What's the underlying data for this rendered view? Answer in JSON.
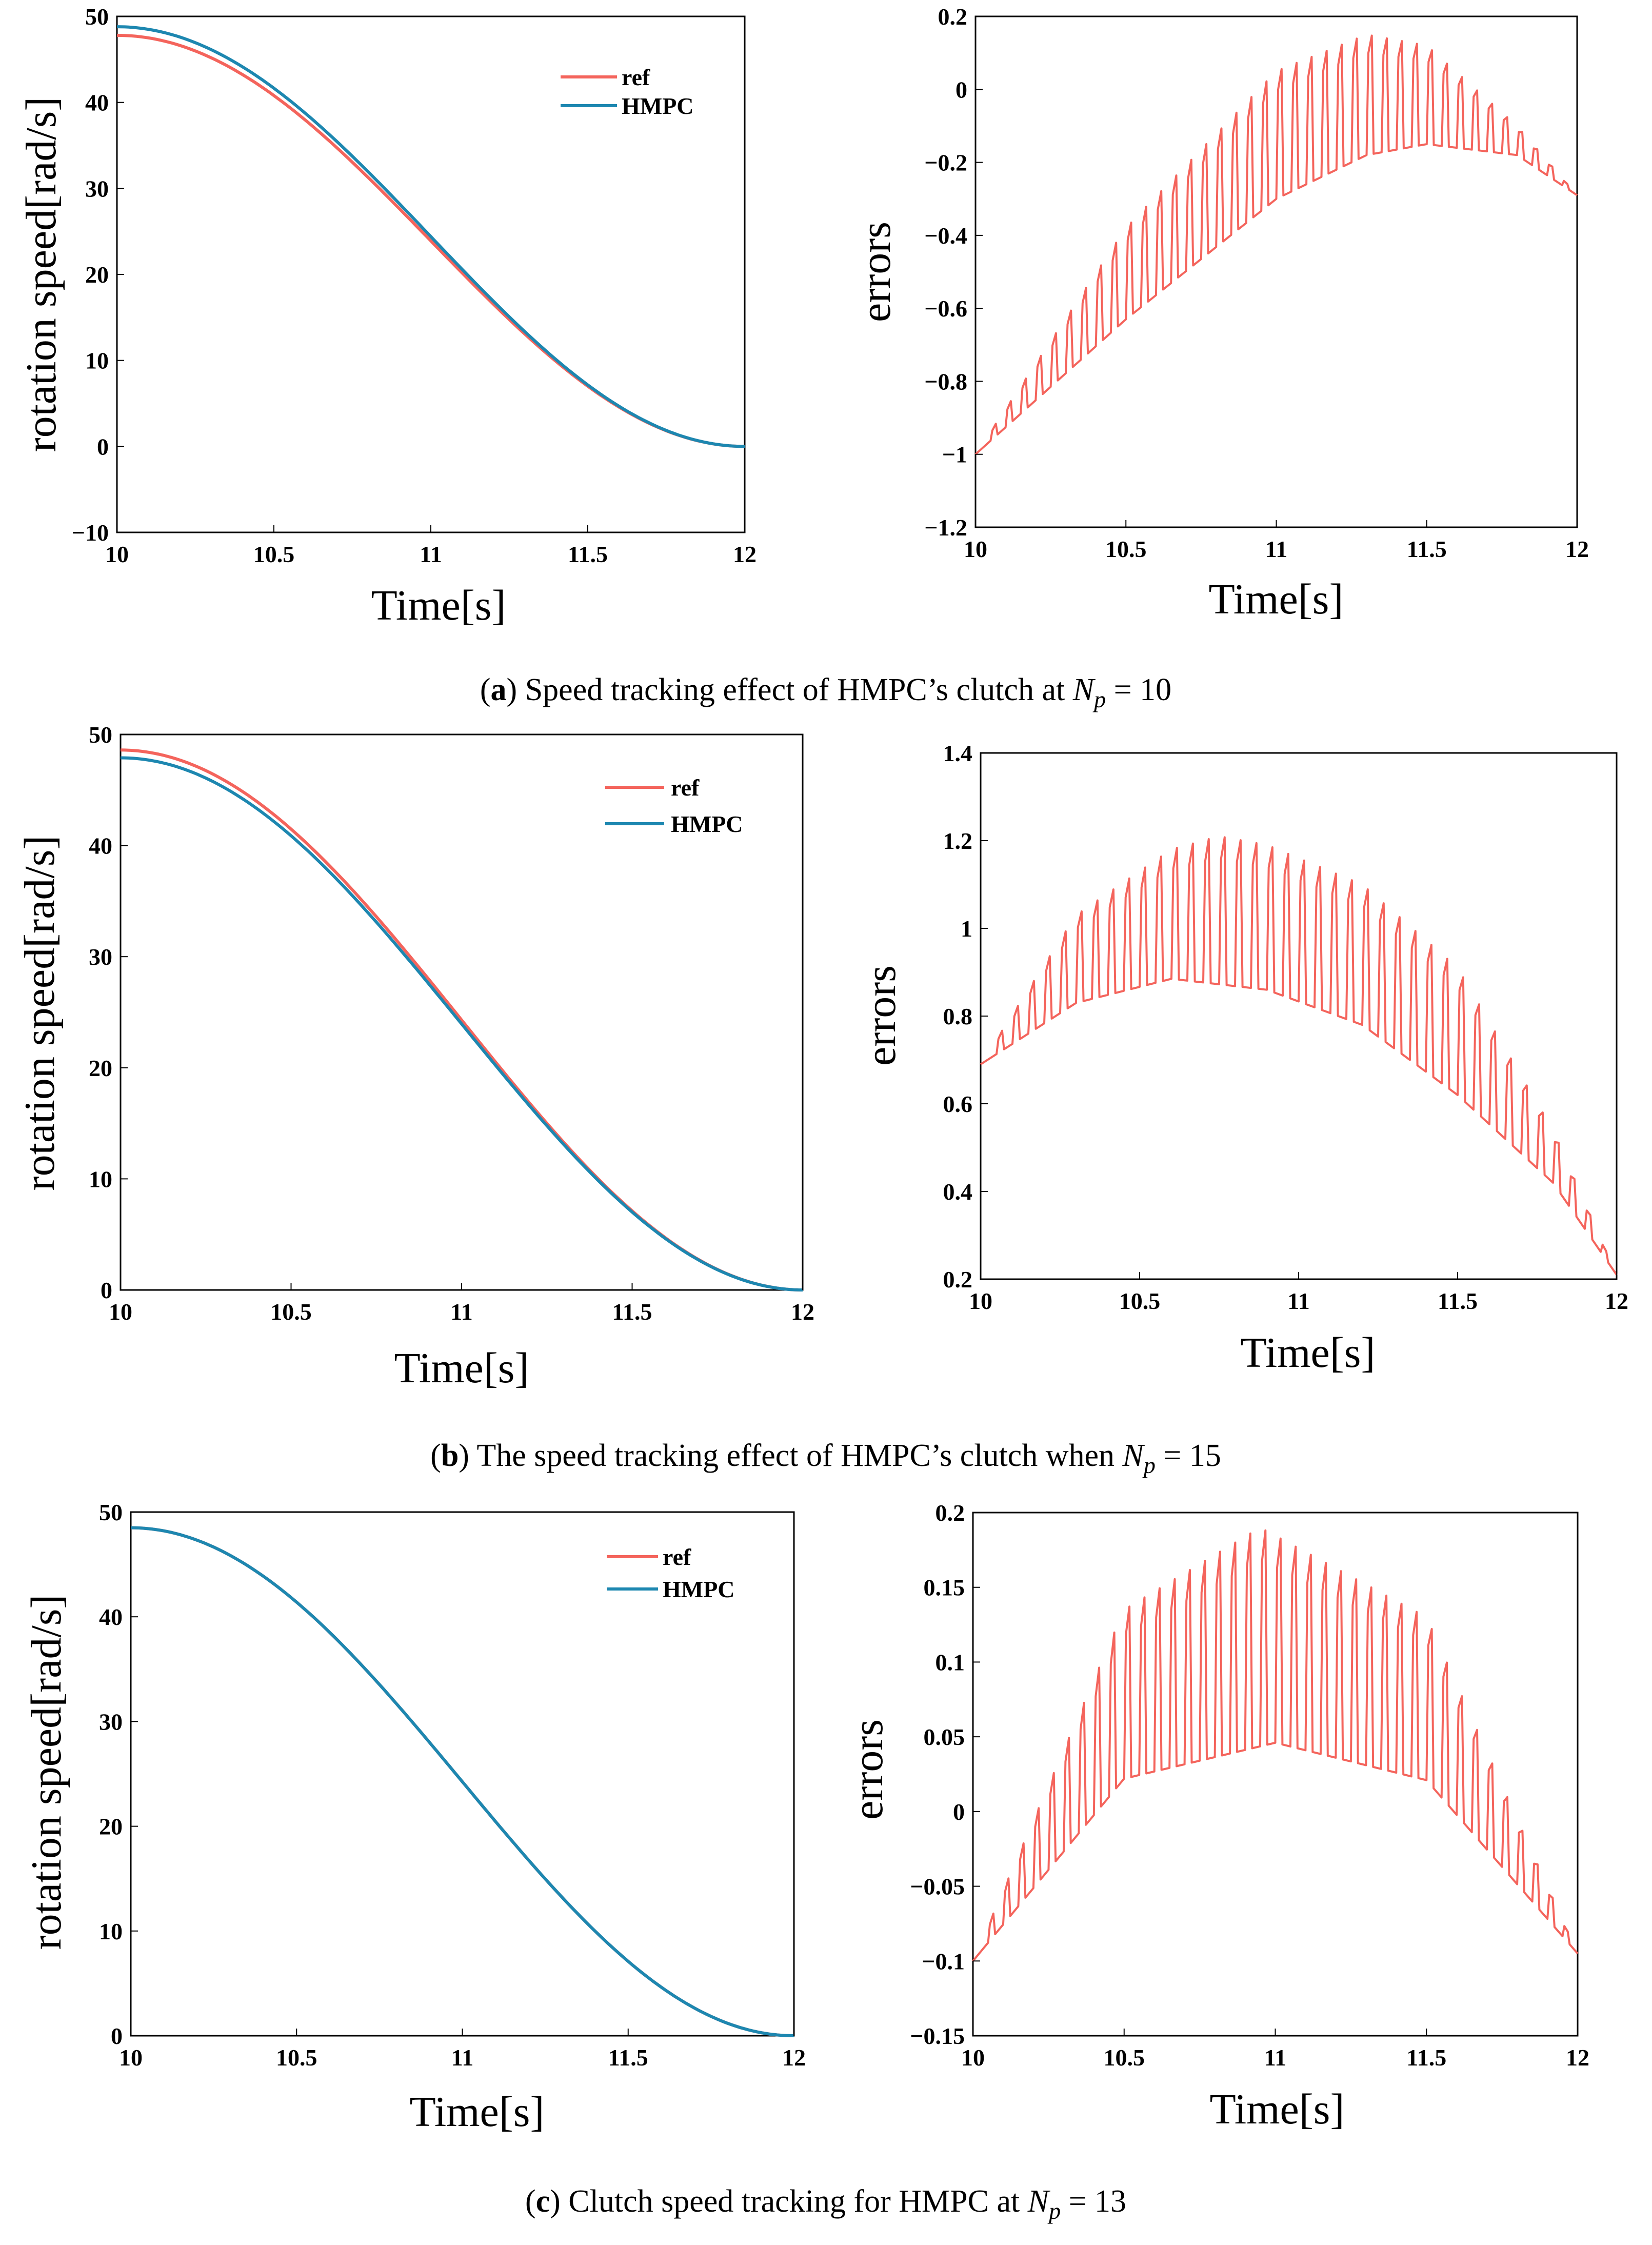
{
  "colors": {
    "ref": "#f4645c",
    "hmpc": "#1d87b0",
    "error": "#f4645c"
  },
  "captions": [
    {
      "open": "(",
      "letter": "a",
      "close": ")",
      "text": " Speed tracking effect of HMPC’s clutch at ",
      "sym": "N",
      "sub": "p",
      "eq": " = 10"
    },
    {
      "open": "(",
      "letter": "b",
      "close": ")",
      "text": " The speed tracking effect of HMPC’s clutch when ",
      "sym": "N",
      "sub": "p",
      "eq": " = 15"
    },
    {
      "open": "(",
      "letter": "c",
      "close": ")",
      "text": " Clutch speed tracking for HMPC at ",
      "sym": "N",
      "sub": "p",
      "eq": " = 13"
    }
  ],
  "chart_data": [
    {
      "id": "a-speed",
      "type": "line",
      "xlabel": "Time[s]",
      "ylabel": "rotation speed[rad/s]",
      "xlim": [
        10,
        12
      ],
      "ylim": [
        -10,
        50
      ],
      "xticks": [
        "10",
        "10.5",
        "11",
        "11.5",
        "12"
      ],
      "yticks": [
        "−10",
        "0",
        "10",
        "20",
        "30",
        "40",
        "50"
      ],
      "legend": {
        "position": "top-right",
        "entries": [
          "ref",
          "HMPC"
        ]
      },
      "series": [
        {
          "name": "ref",
          "model": "cosine",
          "start": 47.8,
          "end": 0,
          "x": [
            10,
            10.5,
            11,
            11.5,
            12
          ],
          "values": [
            47.8,
            40.8,
            23.9,
            7.0,
            0
          ]
        },
        {
          "name": "HMPC",
          "model": "cosine",
          "start": 48.8,
          "end": 0,
          "x": [
            10,
            10.5,
            11,
            11.5,
            12
          ],
          "values": [
            48.8,
            41.6,
            24.4,
            7.1,
            0
          ]
        }
      ]
    },
    {
      "id": "a-error",
      "type": "line",
      "xlabel": "Time[s]",
      "ylabel": "errors",
      "xlim": [
        10,
        12
      ],
      "ylim": [
        -1.2,
        0.2
      ],
      "xticks": [
        "10",
        "10.5",
        "11",
        "11.5",
        "12"
      ],
      "yticks": [
        "−1.2",
        "−1",
        "−0.8",
        "−0.6",
        "−0.4",
        "−0.2",
        "0",
        "0.2"
      ],
      "series": [
        {
          "name": "error",
          "model": "sawtooth",
          "pulses": 40,
          "base_x": [
            10,
            10.5,
            11,
            11.3,
            11.5,
            11.8,
            12
          ],
          "base_y": [
            -1.0,
            -0.63,
            -0.3,
            -0.18,
            -0.15,
            -0.18,
            -0.29
          ],
          "peak_x": [
            10,
            10.5,
            11,
            11.3,
            11.5,
            11.8,
            12
          ],
          "peak_y": [
            -1.0,
            -0.38,
            0.05,
            0.15,
            0.12,
            -0.1,
            -0.29
          ]
        }
      ]
    },
    {
      "id": "b-speed",
      "type": "line",
      "xlabel": "Time[s]",
      "ylabel": "rotation speed[rad/s]",
      "xlim": [
        10,
        12
      ],
      "ylim": [
        0,
        50
      ],
      "xticks": [
        "10",
        "10.5",
        "11",
        "11.5",
        "12"
      ],
      "yticks": [
        "0",
        "10",
        "20",
        "30",
        "40",
        "50"
      ],
      "legend": {
        "position": "top-right",
        "entries": [
          "ref",
          "HMPC"
        ]
      },
      "series": [
        {
          "name": "ref",
          "model": "cosine",
          "start": 48.6,
          "end": 0,
          "x": [
            10,
            10.5,
            11,
            11.5,
            12
          ],
          "values": [
            48.6,
            41.5,
            24.3,
            7.1,
            0
          ]
        },
        {
          "name": "HMPC",
          "model": "cosine",
          "start": 47.9,
          "end": 0,
          "x": [
            10,
            10.5,
            11,
            11.5,
            12
          ],
          "values": [
            47.9,
            40.9,
            24.0,
            7.0,
            0
          ]
        }
      ]
    },
    {
      "id": "b-error",
      "type": "line",
      "xlabel": "Time[s]",
      "ylabel": "errors",
      "xlim": [
        10,
        12
      ],
      "ylim": [
        0.2,
        1.4
      ],
      "xticks": [
        "10",
        "10.5",
        "11",
        "11.5",
        "12"
      ],
      "yticks": [
        "0.2",
        "0.4",
        "0.6",
        "0.8",
        "1",
        "1.2",
        "1.4"
      ],
      "series": [
        {
          "name": "error",
          "model": "sawtooth",
          "pulses": 40,
          "base_x": [
            10,
            10.3,
            10.6,
            10.9,
            11.2,
            11.5,
            11.8,
            12
          ],
          "base_y": [
            0.69,
            0.83,
            0.885,
            0.86,
            0.78,
            0.62,
            0.42,
            0.21
          ],
          "peak_x": [
            10,
            10.3,
            10.6,
            10.75,
            10.9,
            11.2,
            11.5,
            11.8,
            12
          ],
          "peak_y": [
            0.69,
            1.03,
            1.18,
            1.21,
            1.19,
            1.1,
            0.91,
            0.54,
            0.21
          ]
        }
      ]
    },
    {
      "id": "c-speed",
      "type": "line",
      "xlabel": "Time[s]",
      "ylabel": "rotation speed[rad/s]",
      "xlim": [
        10,
        12
      ],
      "ylim": [
        0,
        50
      ],
      "xticks": [
        "10",
        "10.5",
        "11",
        "11.5",
        "12"
      ],
      "yticks": [
        "0",
        "10",
        "20",
        "30",
        "40",
        "50"
      ],
      "legend": {
        "position": "top-right",
        "entries": [
          "ref",
          "HMPC"
        ]
      },
      "series": [
        {
          "name": "ref",
          "model": "cosine",
          "start": 48.5,
          "end": 0,
          "x": [
            10,
            10.5,
            11,
            11.5,
            12
          ],
          "values": [
            48.5,
            41.3,
            23.9,
            6.9,
            0
          ]
        },
        {
          "name": "HMPC",
          "model": "cosine",
          "start": 48.5,
          "end": 0,
          "x": [
            10,
            10.5,
            11,
            11.5,
            12
          ],
          "values": [
            48.5,
            41.5,
            24.4,
            7.1,
            0
          ]
        }
      ]
    },
    {
      "id": "c-error",
      "type": "line",
      "xlabel": "Time[s]",
      "ylabel": "errors",
      "xlim": [
        10,
        12
      ],
      "ylim": [
        -0.15,
        0.2
      ],
      "xticks": [
        "10",
        "10.5",
        "11",
        "11.5",
        "12"
      ],
      "yticks": [
        "−0.15",
        "−0.1",
        "−0.05",
        "0",
        "0.05",
        "0.1",
        "0.15",
        "0.2"
      ],
      "series": [
        {
          "name": "error",
          "model": "sawtooth",
          "pulses": 40,
          "base_x": [
            10,
            10.5,
            11,
            11.5,
            12
          ],
          "base_y": [
            -0.1,
            0.022,
            0.046,
            0.021,
            -0.095
          ],
          "peak_x": [
            10,
            10.5,
            10.95,
            11.5,
            12
          ],
          "peak_y": [
            -0.1,
            0.135,
            0.19,
            0.13,
            -0.095
          ]
        }
      ]
    }
  ]
}
